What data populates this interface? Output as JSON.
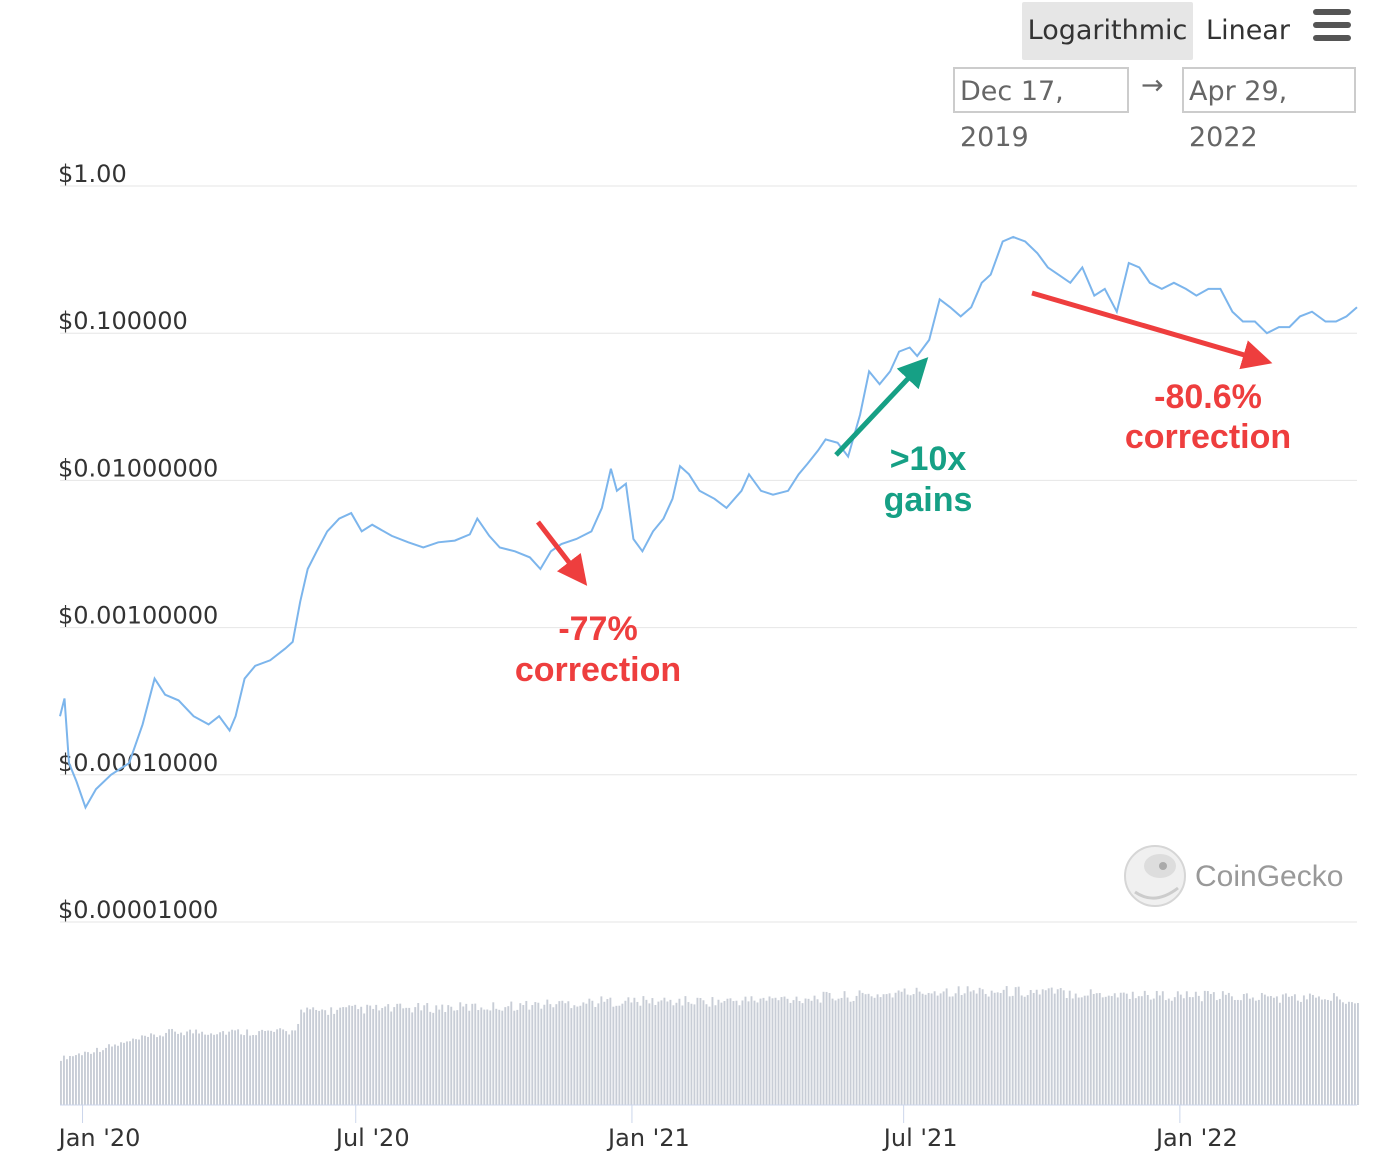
{
  "toolbar": {
    "log_label": "Logarithmic",
    "linear_label": "Linear",
    "active_scale": "Logarithmic",
    "menu_icon": "hamburger-menu-icon",
    "date_from": "Dec 17, 2019",
    "date_separator": "→",
    "date_to": "Apr 29, 2022"
  },
  "watermark": {
    "text": "CoinGecko",
    "icon": "gecko-logo-icon"
  },
  "colors": {
    "price_line": "#7cb5ec",
    "volume_bars": "#c8cdd6",
    "gridline": "#e6e6e6",
    "annotation_red": "#ee3e3e",
    "annotation_green": "#16a085"
  },
  "chart_data": {
    "type": "line",
    "yscale": "log",
    "grid": true,
    "ylim": [
      1e-05,
      1
    ],
    "xlim": [
      "2019-12-17",
      "2022-04-29"
    ],
    "y_ticks": [
      {
        "value": 1,
        "label": "$1.00"
      },
      {
        "value": 0.1,
        "label": "$0.100000"
      },
      {
        "value": 0.01,
        "label": "$0.01000000"
      },
      {
        "value": 0.001,
        "label": "$0.00100000"
      },
      {
        "value": 0.0001,
        "label": "$0.00010000"
      },
      {
        "value": 1e-05,
        "label": "$0.00001000"
      }
    ],
    "x_ticks": [
      {
        "date": "2020-01-01",
        "label": "Jan '20"
      },
      {
        "date": "2020-07-01",
        "label": "Jul '20"
      },
      {
        "date": "2021-01-01",
        "label": "Jan '21"
      },
      {
        "date": "2021-07-01",
        "label": "Jul '21"
      },
      {
        "date": "2022-01-01",
        "label": "Jan '22"
      }
    ],
    "price_series": [
      [
        "2019-12-17",
        0.00025
      ],
      [
        "2019-12-20",
        0.00033
      ],
      [
        "2019-12-23",
        0.00012
      ],
      [
        "2019-12-28",
        9e-05
      ],
      [
        "2020-01-03",
        6e-05
      ],
      [
        "2020-01-10",
        8e-05
      ],
      [
        "2020-01-20",
        0.0001
      ],
      [
        "2020-02-01",
        0.00012
      ],
      [
        "2020-02-10",
        0.00022
      ],
      [
        "2020-02-18",
        0.00045
      ],
      [
        "2020-02-25",
        0.00035
      ],
      [
        "2020-03-05",
        0.00032
      ],
      [
        "2020-03-15",
        0.00025
      ],
      [
        "2020-03-25",
        0.00022
      ],
      [
        "2020-04-01",
        0.00025
      ],
      [
        "2020-04-08",
        0.0002
      ],
      [
        "2020-04-12",
        0.00025
      ],
      [
        "2020-04-18",
        0.00045
      ],
      [
        "2020-04-25",
        0.00055
      ],
      [
        "2020-05-05",
        0.0006
      ],
      [
        "2020-05-15",
        0.00072
      ],
      [
        "2020-05-20",
        0.0008
      ],
      [
        "2020-05-25",
        0.0015
      ],
      [
        "2020-05-30",
        0.0025
      ],
      [
        "2020-06-05",
        0.0033
      ],
      [
        "2020-06-12",
        0.0045
      ],
      [
        "2020-06-20",
        0.0055
      ],
      [
        "2020-06-28",
        0.006
      ],
      [
        "2020-07-05",
        0.0045
      ],
      [
        "2020-07-12",
        0.005
      ],
      [
        "2020-07-25",
        0.0042
      ],
      [
        "2020-08-05",
        0.0038
      ],
      [
        "2020-08-15",
        0.0035
      ],
      [
        "2020-08-25",
        0.0038
      ],
      [
        "2020-09-05",
        0.0039
      ],
      [
        "2020-09-15",
        0.0043
      ],
      [
        "2020-09-20",
        0.0055
      ],
      [
        "2020-09-28",
        0.0042
      ],
      [
        "2020-10-05",
        0.0035
      ],
      [
        "2020-10-15",
        0.0033
      ],
      [
        "2020-10-25",
        0.003
      ],
      [
        "2020-11-01",
        0.0025
      ],
      [
        "2020-11-08",
        0.0033
      ],
      [
        "2020-11-15",
        0.0037
      ],
      [
        "2020-11-25",
        0.004
      ],
      [
        "2020-12-05",
        0.0045
      ],
      [
        "2020-12-12",
        0.0065
      ],
      [
        "2020-12-18",
        0.012
      ],
      [
        "2020-12-22",
        0.0085
      ],
      [
        "2020-12-28",
        0.0095
      ],
      [
        "2021-01-02",
        0.004
      ],
      [
        "2021-01-08",
        0.0033
      ],
      [
        "2021-01-15",
        0.0045
      ],
      [
        "2021-01-22",
        0.0055
      ],
      [
        "2021-01-28",
        0.0075
      ],
      [
        "2021-02-02",
        0.0125
      ],
      [
        "2021-02-08",
        0.011
      ],
      [
        "2021-02-15",
        0.0085
      ],
      [
        "2021-02-25",
        0.0075
      ],
      [
        "2021-03-05",
        0.0065
      ],
      [
        "2021-03-15",
        0.0085
      ],
      [
        "2021-03-20",
        0.011
      ],
      [
        "2021-03-28",
        0.0085
      ],
      [
        "2021-04-05",
        0.008
      ],
      [
        "2021-04-15",
        0.0085
      ],
      [
        "2021-04-22",
        0.011
      ],
      [
        "2021-04-28",
        0.013
      ],
      [
        "2021-05-05",
        0.016
      ],
      [
        "2021-05-10",
        0.019
      ],
      [
        "2021-05-18",
        0.018
      ],
      [
        "2021-05-25",
        0.0145
      ],
      [
        "2021-06-02",
        0.028
      ],
      [
        "2021-06-08",
        0.055
      ],
      [
        "2021-06-15",
        0.045
      ],
      [
        "2021-06-22",
        0.055
      ],
      [
        "2021-06-28",
        0.075
      ],
      [
        "2021-07-05",
        0.08
      ],
      [
        "2021-07-10",
        0.07
      ],
      [
        "2021-07-18",
        0.09
      ],
      [
        "2021-07-25",
        0.17
      ],
      [
        "2021-08-01",
        0.15
      ],
      [
        "2021-08-08",
        0.13
      ],
      [
        "2021-08-15",
        0.15
      ],
      [
        "2021-08-22",
        0.22
      ],
      [
        "2021-08-28",
        0.25
      ],
      [
        "2021-09-05",
        0.42
      ],
      [
        "2021-09-12",
        0.45
      ],
      [
        "2021-09-20",
        0.42
      ],
      [
        "2021-09-28",
        0.35
      ],
      [
        "2021-10-05",
        0.28
      ],
      [
        "2021-10-12",
        0.25
      ],
      [
        "2021-10-20",
        0.22
      ],
      [
        "2021-10-28",
        0.28
      ],
      [
        "2021-11-05",
        0.18
      ],
      [
        "2021-11-12",
        0.2
      ],
      [
        "2021-11-20",
        0.14
      ],
      [
        "2021-11-28",
        0.3
      ],
      [
        "2021-12-05",
        0.28
      ],
      [
        "2021-12-12",
        0.22
      ],
      [
        "2021-12-20",
        0.2
      ],
      [
        "2021-12-28",
        0.22
      ],
      [
        "2022-01-05",
        0.2
      ],
      [
        "2022-01-12",
        0.18
      ],
      [
        "2022-01-20",
        0.2
      ],
      [
        "2022-01-28",
        0.2
      ],
      [
        "2022-02-05",
        0.14
      ],
      [
        "2022-02-12",
        0.12
      ],
      [
        "2022-02-20",
        0.12
      ],
      [
        "2022-02-28",
        0.1
      ],
      [
        "2022-03-08",
        0.11
      ],
      [
        "2022-03-15",
        0.11
      ],
      [
        "2022-03-22",
        0.13
      ],
      [
        "2022-03-30",
        0.14
      ],
      [
        "2022-04-08",
        0.12
      ],
      [
        "2022-04-15",
        0.12
      ],
      [
        "2022-04-22",
        0.13
      ],
      [
        "2022-04-29",
        0.15
      ]
    ],
    "volume_profile": [
      [
        "2019-12-17",
        0.35
      ],
      [
        "2020-02-10",
        0.5
      ],
      [
        "2020-03-01",
        0.55
      ],
      [
        "2020-04-01",
        0.55
      ],
      [
        "2020-05-20",
        0.55
      ],
      [
        "2020-05-25",
        0.7
      ],
      [
        "2020-07-01",
        0.72
      ],
      [
        "2020-10-01",
        0.74
      ],
      [
        "2020-12-15",
        0.78
      ],
      [
        "2021-03-01",
        0.78
      ],
      [
        "2021-06-01",
        0.82
      ],
      [
        "2021-07-25",
        0.86
      ],
      [
        "2021-10-01",
        0.85
      ],
      [
        "2022-01-01",
        0.82
      ],
      [
        "2022-04-29",
        0.8
      ]
    ],
    "annotations": [
      {
        "text": "-77%",
        "line2": "correction",
        "color": "red"
      },
      {
        "text": ">10x",
        "line2": "gains",
        "color": "green"
      },
      {
        "text": "-80.6%",
        "line2": "correction",
        "color": "red"
      }
    ]
  }
}
